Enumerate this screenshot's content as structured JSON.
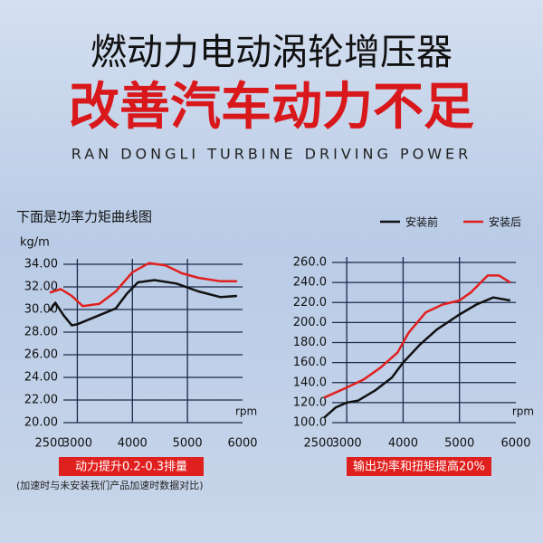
{
  "header": {
    "title": "燃动力电动涡轮增压器",
    "slogan": "改善汽车动力不足",
    "subtitle": "RAN DONGLI TURBINE DRIVING POWER",
    "section": "下面是功率力矩曲线图"
  },
  "footnote": "(加速时与未安装我们产品加速时数据对比)",
  "chart_data": [
    {
      "type": "line",
      "y_label": "kg/m",
      "x_label": "rpm",
      "caption": "动力提升0.2-0.3排量",
      "xlim": [
        2500,
        6000
      ],
      "xticks": [
        2500,
        3000,
        4000,
        5000,
        6000
      ],
      "ylim": [
        20,
        34
      ],
      "yticks": [
        {
          "value": 20,
          "label": "20.00"
        },
        {
          "value": 22,
          "label": "22.00"
        },
        {
          "value": 24,
          "label": "24.00"
        },
        {
          "value": 26,
          "label": "26.00"
        },
        {
          "value": 28,
          "label": "28.00"
        },
        {
          "value": 30,
          "label": "30.00"
        },
        {
          "value": 32,
          "label": "32.00"
        },
        {
          "value": 34,
          "label": "34.00"
        }
      ],
      "grid": true,
      "series": [
        {
          "color": "#111111",
          "x": [
            2500,
            2600,
            2750,
            2900,
            3000,
            3300,
            3700,
            3900,
            4100,
            4400,
            4800,
            5200,
            5600,
            5900
          ],
          "values": [
            29.9,
            30.6,
            29.5,
            28.6,
            28.7,
            29.3,
            30.1,
            31.4,
            32.4,
            32.6,
            32.3,
            31.6,
            31.1,
            31.2
          ]
        },
        {
          "color": "#e0201e",
          "x": [
            2500,
            2700,
            2900,
            3100,
            3400,
            3700,
            4000,
            4300,
            4600,
            4900,
            5200,
            5600,
            5900
          ],
          "values": [
            31.5,
            31.8,
            31.2,
            30.3,
            30.5,
            31.6,
            33.3,
            34.1,
            33.9,
            33.2,
            32.8,
            32.5,
            32.5
          ]
        }
      ]
    },
    {
      "type": "line",
      "x_label": "rpm",
      "caption": "输出功率和扭矩提高20%",
      "xlim": [
        2500,
        6000
      ],
      "xticks": [
        2500,
        3000,
        4000,
        5000,
        6000
      ],
      "ylim": [
        100,
        260
      ],
      "yticks": [
        {
          "value": 100,
          "label": "100.0"
        },
        {
          "value": 120,
          "label": "120.0"
        },
        {
          "value": 140,
          "label": "140.0"
        },
        {
          "value": 160,
          "label": "160.0"
        },
        {
          "value": 180,
          "label": "180.0"
        },
        {
          "value": 200,
          "label": "200.0"
        },
        {
          "value": 220,
          "label": "220.0"
        },
        {
          "value": 240,
          "label": "240.0"
        },
        {
          "value": 260,
          "label": "260.0"
        }
      ],
      "grid": true,
      "series": [
        {
          "name": "安装前",
          "color": "#111111",
          "x": [
            2600,
            2800,
            3000,
            3200,
            3500,
            3800,
            4000,
            4300,
            4600,
            5000,
            5300,
            5600,
            5900
          ],
          "values": [
            105,
            115,
            120,
            122,
            132,
            145,
            160,
            178,
            193,
            208,
            218,
            225,
            222
          ]
        },
        {
          "name": "安装后",
          "color": "#e0201e",
          "x": [
            2600,
            3000,
            3300,
            3600,
            3900,
            4100,
            4400,
            4700,
            5000,
            5200,
            5500,
            5700,
            5900
          ],
          "values": [
            125,
            135,
            143,
            155,
            170,
            190,
            210,
            218,
            222,
            230,
            247,
            247,
            240
          ]
        }
      ]
    }
  ]
}
